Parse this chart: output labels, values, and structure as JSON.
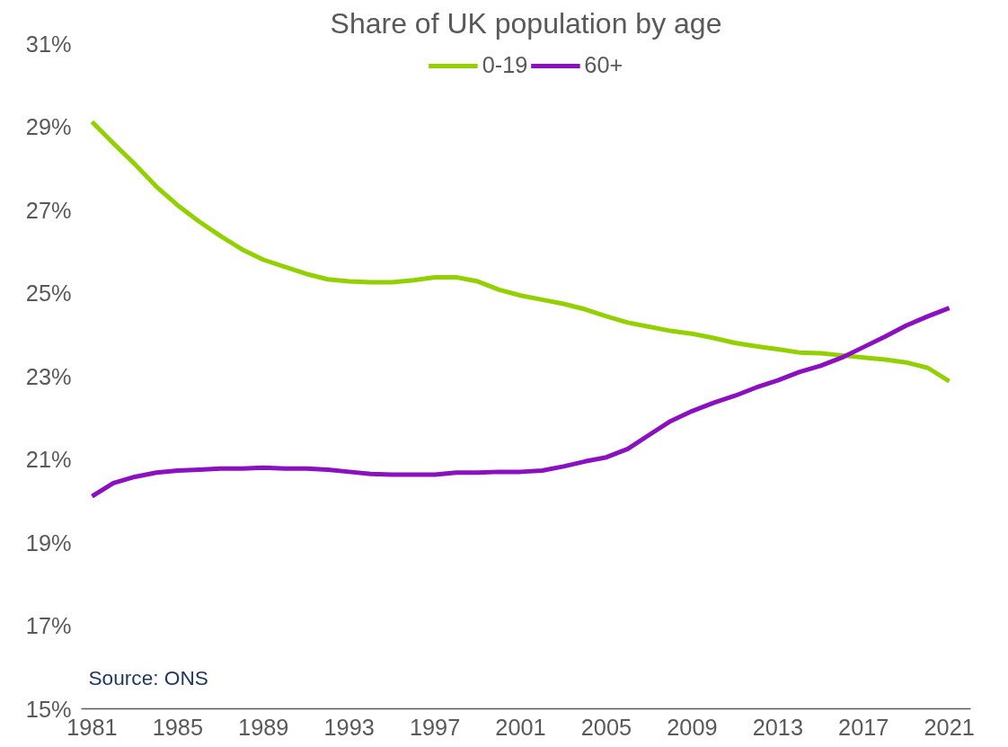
{
  "chart_data": {
    "type": "line",
    "title": "Share of UK population by age",
    "x": [
      1981,
      1982,
      1983,
      1984,
      1985,
      1986,
      1987,
      1988,
      1989,
      1990,
      1991,
      1992,
      1993,
      1994,
      1995,
      1996,
      1997,
      1998,
      1999,
      2000,
      2001,
      2002,
      2003,
      2004,
      2005,
      2006,
      2007,
      2008,
      2009,
      2010,
      2011,
      2012,
      2013,
      2014,
      2015,
      2016,
      2017,
      2018,
      2019,
      2020,
      2021
    ],
    "series": [
      {
        "name": "0-19",
        "color": "#92d000",
        "values": [
          29.12,
          28.6,
          28.1,
          27.56,
          27.11,
          26.72,
          26.37,
          26.05,
          25.8,
          25.63,
          25.46,
          25.33,
          25.28,
          25.26,
          25.26,
          25.31,
          25.38,
          25.38,
          25.28,
          25.08,
          24.94,
          24.84,
          24.74,
          24.61,
          24.44,
          24.29,
          24.19,
          24.09,
          24.02,
          23.92,
          23.8,
          23.72,
          23.65,
          23.57,
          23.55,
          23.5,
          23.45,
          23.4,
          23.33,
          23.2,
          22.88
        ]
      },
      {
        "name": "60+",
        "color": "#8a10c0",
        "values": [
          20.11,
          20.43,
          20.58,
          20.68,
          20.73,
          20.75,
          20.78,
          20.78,
          20.8,
          20.78,
          20.78,
          20.75,
          20.7,
          20.65,
          20.63,
          20.63,
          20.63,
          20.68,
          20.68,
          20.7,
          20.7,
          20.73,
          20.83,
          20.95,
          21.05,
          21.25,
          21.59,
          21.92,
          22.16,
          22.36,
          22.53,
          22.73,
          22.9,
          23.1,
          23.25,
          23.45,
          23.7,
          23.95,
          24.22,
          24.44,
          24.64
        ]
      }
    ],
    "xlim": [
      1980.5,
      2022
    ],
    "xticks": [
      1981,
      1985,
      1989,
      1993,
      1997,
      2001,
      2005,
      2009,
      2013,
      2017,
      2021
    ],
    "ylim": [
      15,
      31
    ],
    "yticks": [
      {
        "value": 15,
        "label": "15%"
      },
      {
        "value": 17,
        "label": "17%"
      },
      {
        "value": 19,
        "label": "19%"
      },
      {
        "value": 21,
        "label": "21%"
      },
      {
        "value": 23,
        "label": "23%"
      },
      {
        "value": 25,
        "label": "25%"
      },
      {
        "value": 27,
        "label": "27%"
      },
      {
        "value": 29,
        "label": "29%"
      },
      {
        "value": 31,
        "label": "31%"
      }
    ],
    "grid": false,
    "legend": "top",
    "marker": "none",
    "line_style": "solid",
    "annotations": [
      "Source: ONS"
    ]
  }
}
